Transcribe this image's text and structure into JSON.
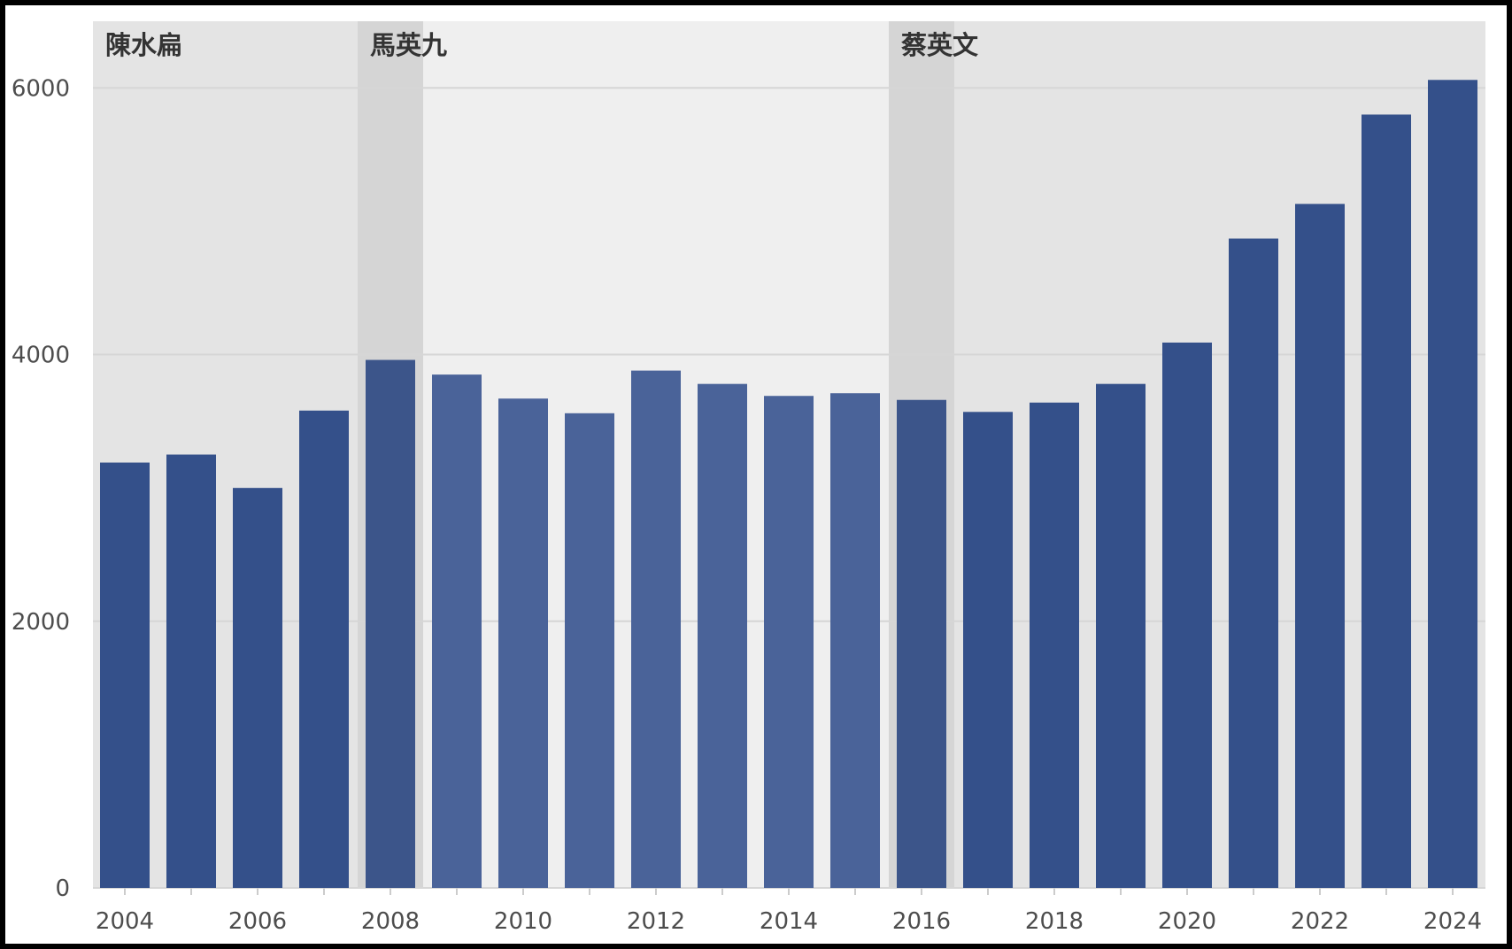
{
  "chart_data": {
    "type": "bar",
    "title": "",
    "xlabel": "",
    "ylabel": "",
    "categories": [
      "2004",
      "2005",
      "2006",
      "2007",
      "2008",
      "2009",
      "2010",
      "2011",
      "2012",
      "2013",
      "2014",
      "2015",
      "2016",
      "2017",
      "2018",
      "2019",
      "2020",
      "2021",
      "2022",
      "2023",
      "2024"
    ],
    "values": [
      3190,
      3250,
      3000,
      3580,
      3960,
      3850,
      3670,
      3560,
      3880,
      3780,
      3690,
      3710,
      3660,
      3570,
      3640,
      3780,
      4090,
      4870,
      5130,
      5800,
      6060
    ],
    "ylim": [
      0,
      6500
    ],
    "yticks": [
      0,
      2000,
      4000,
      6000
    ],
    "xticks": [
      "2004",
      "2006",
      "2008",
      "2010",
      "2012",
      "2014",
      "2016",
      "2018",
      "2020",
      "2022",
      "2024"
    ],
    "grid": true,
    "colors": {
      "bar": "#34508a",
      "bar_highlight": "#4a6399",
      "period_dark": "#e4e4e4",
      "period_light": "#efefef",
      "transition": "#d5d5d5",
      "grid": "#d6d6d6"
    },
    "periods": [
      {
        "label": "陳水扁",
        "start": "2004",
        "end": "2008",
        "shade": "dark"
      },
      {
        "label": "馬英九",
        "start": "2008",
        "end": "2016",
        "shade": "light"
      },
      {
        "label": "蔡英文",
        "start": "2016",
        "end": "2024",
        "shade": "dark"
      }
    ],
    "transitions": [
      "2008",
      "2016"
    ],
    "highlighted_years": [
      "2009",
      "2010",
      "2011",
      "2012",
      "2013",
      "2014",
      "2015"
    ]
  }
}
